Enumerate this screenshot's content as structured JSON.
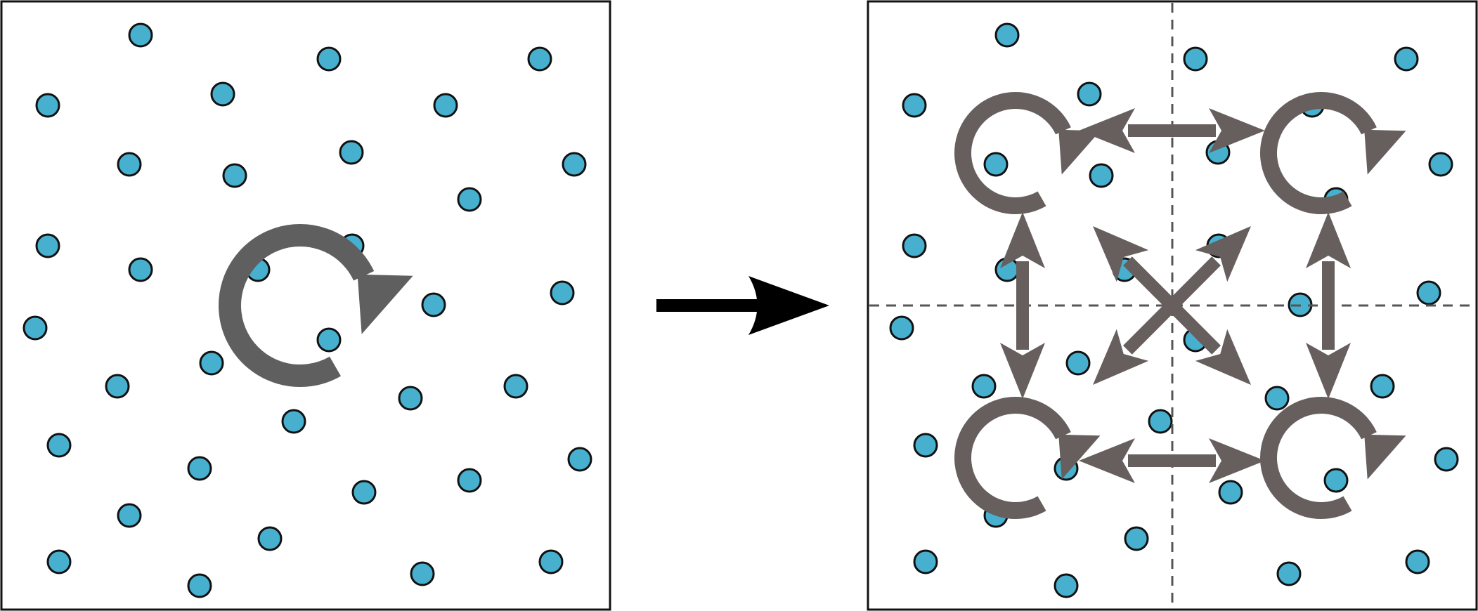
{
  "colors": {
    "particle_fill": "#47b0cf",
    "particle_stroke": "#111111",
    "symbol_gray": "#5f5f5f",
    "interaction_gray": "#665f5d",
    "frame": "#111111",
    "divider": "#555555",
    "transition_arrow": "#000000",
    "background": "#ffffff"
  },
  "panels": {
    "before": {
      "label": "",
      "particle_count": 36,
      "rotation_symbol_count": 1
    },
    "after": {
      "label": "",
      "subdomain_count": 4,
      "rotation_symbol_count": 4,
      "interaction_arrow_count": 6
    }
  },
  "transition": {
    "icon": "right-arrow-icon"
  },
  "icons": {
    "rotation": "circular-arrow-icon",
    "interaction": "double-headed-arrow-icon"
  }
}
